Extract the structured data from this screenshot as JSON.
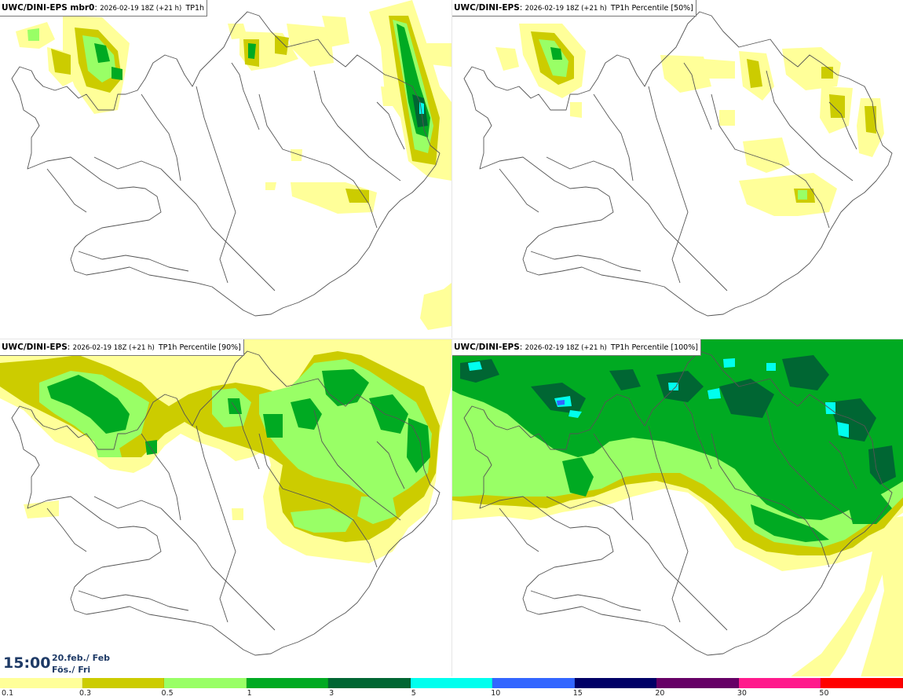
{
  "panels": [
    {
      "model": "UWC/DINI-EPS mbr0",
      "run": "2026-02-19 18Z (+21 h)",
      "field": "TP1h",
      "member": "mbr0"
    },
    {
      "model": "UWC/DINI-EPS",
      "run": "2026-02-19 18Z (+21 h)",
      "field": "TP1h Percentile [50%]",
      "percentile": 50
    },
    {
      "model": "UWC/DINI-EPS",
      "run": "2026-02-19 18Z (+21 h)",
      "field": "TP1h Percentile [90%]",
      "percentile": 90
    },
    {
      "model": "UWC/DINI-EPS",
      "run": "2026-02-19 18Z (+21 h)",
      "field": "TP1h Percentile [100%]",
      "percentile": 100
    }
  ],
  "valid_time": {
    "time": "15:00",
    "date_line1": "20.feb./ Feb",
    "date_line2": "Fös./ Fri"
  },
  "legend": {
    "thresholds": [
      "0.1",
      "0.3",
      "0.5",
      "1",
      "3",
      "5",
      "10",
      "15",
      "20",
      "30",
      "50"
    ],
    "colors": [
      "#ffff99",
      "#cccc00",
      "#99ff66",
      "#00aa22",
      "#006633",
      "#00ffee",
      "#3366ff",
      "#000066",
      "#660066",
      "#ff1a8c",
      "#ff0000"
    ]
  },
  "colors": {
    "coast": "#555555",
    "roads": "#333333",
    "title_text": "#1e3a66"
  }
}
